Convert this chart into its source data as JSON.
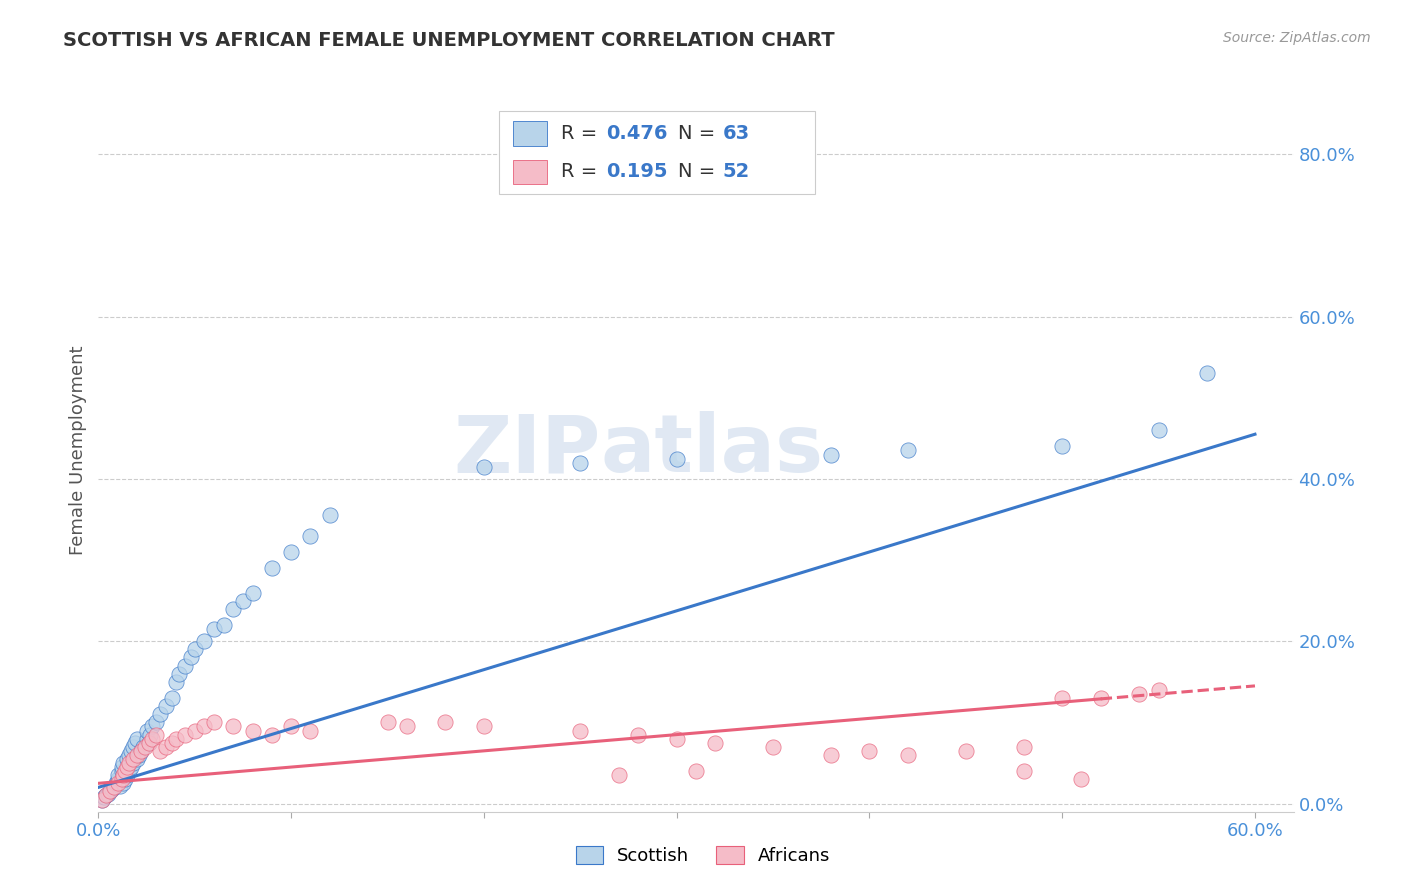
{
  "title": "SCOTTISH VS AFRICAN FEMALE UNEMPLOYMENT CORRELATION CHART",
  "source": "Source: ZipAtlas.com",
  "ylabel": "Female Unemployment",
  "xlim": [
    0.0,
    0.62
  ],
  "ylim": [
    -0.01,
    0.88
  ],
  "yticks_right": [
    0.0,
    0.2,
    0.4,
    0.6,
    0.8
  ],
  "yticklabels_right": [
    "0.0%",
    "20.0%",
    "40.0%",
    "60.0%",
    "80.0%"
  ],
  "scottish_color": "#b8d4ea",
  "african_color": "#f5bcc8",
  "trend_scottish_color": "#3a78c9",
  "trend_african_color": "#e8607a",
  "watermark_text": "ZIP",
  "watermark_text2": "atlas",
  "background_color": "#ffffff",
  "scottish_x": [
    0.002,
    0.003,
    0.004,
    0.005,
    0.006,
    0.007,
    0.008,
    0.009,
    0.01,
    0.01,
    0.01,
    0.011,
    0.012,
    0.012,
    0.013,
    0.013,
    0.014,
    0.015,
    0.015,
    0.016,
    0.016,
    0.017,
    0.017,
    0.018,
    0.018,
    0.019,
    0.02,
    0.02,
    0.021,
    0.022,
    0.023,
    0.025,
    0.025,
    0.026,
    0.027,
    0.028,
    0.03,
    0.032,
    0.035,
    0.038,
    0.04,
    0.042,
    0.045,
    0.048,
    0.05,
    0.055,
    0.06,
    0.065,
    0.07,
    0.075,
    0.08,
    0.09,
    0.1,
    0.11,
    0.12,
    0.2,
    0.25,
    0.3,
    0.38,
    0.42,
    0.5,
    0.55,
    0.575
  ],
  "scottish_y": [
    0.005,
    0.008,
    0.01,
    0.012,
    0.015,
    0.018,
    0.02,
    0.025,
    0.028,
    0.03,
    0.035,
    0.022,
    0.04,
    0.045,
    0.025,
    0.05,
    0.03,
    0.055,
    0.035,
    0.06,
    0.04,
    0.065,
    0.045,
    0.07,
    0.05,
    0.075,
    0.055,
    0.08,
    0.06,
    0.065,
    0.07,
    0.08,
    0.09,
    0.075,
    0.085,
    0.095,
    0.1,
    0.11,
    0.12,
    0.13,
    0.15,
    0.16,
    0.17,
    0.18,
    0.19,
    0.2,
    0.215,
    0.22,
    0.24,
    0.25,
    0.26,
    0.29,
    0.31,
    0.33,
    0.355,
    0.415,
    0.42,
    0.425,
    0.43,
    0.435,
    0.44,
    0.46,
    0.53
  ],
  "african_x": [
    0.002,
    0.004,
    0.006,
    0.008,
    0.01,
    0.012,
    0.013,
    0.014,
    0.015,
    0.016,
    0.018,
    0.02,
    0.022,
    0.024,
    0.026,
    0.028,
    0.03,
    0.032,
    0.035,
    0.038,
    0.04,
    0.045,
    0.05,
    0.055,
    0.06,
    0.07,
    0.08,
    0.09,
    0.1,
    0.11,
    0.15,
    0.16,
    0.18,
    0.2,
    0.25,
    0.28,
    0.3,
    0.32,
    0.35,
    0.4,
    0.42,
    0.45,
    0.48,
    0.5,
    0.52,
    0.54,
    0.55,
    0.27,
    0.31,
    0.38,
    0.48,
    0.51
  ],
  "african_y": [
    0.005,
    0.01,
    0.015,
    0.02,
    0.025,
    0.03,
    0.035,
    0.04,
    0.045,
    0.05,
    0.055,
    0.06,
    0.065,
    0.07,
    0.075,
    0.08,
    0.085,
    0.065,
    0.07,
    0.075,
    0.08,
    0.085,
    0.09,
    0.095,
    0.1,
    0.095,
    0.09,
    0.085,
    0.095,
    0.09,
    0.1,
    0.095,
    0.1,
    0.095,
    0.09,
    0.085,
    0.08,
    0.075,
    0.07,
    0.065,
    0.06,
    0.065,
    0.07,
    0.13,
    0.13,
    0.135,
    0.14,
    0.035,
    0.04,
    0.06,
    0.04,
    0.03
  ],
  "trend_s_x0": 0.0,
  "trend_s_y0": 0.02,
  "trend_s_x1": 0.6,
  "trend_s_y1": 0.455,
  "trend_a_x0": 0.0,
  "trend_a_y0": 0.025,
  "trend_a_x1": 0.6,
  "trend_a_y1": 0.145,
  "trend_a_solid_end": 0.52
}
